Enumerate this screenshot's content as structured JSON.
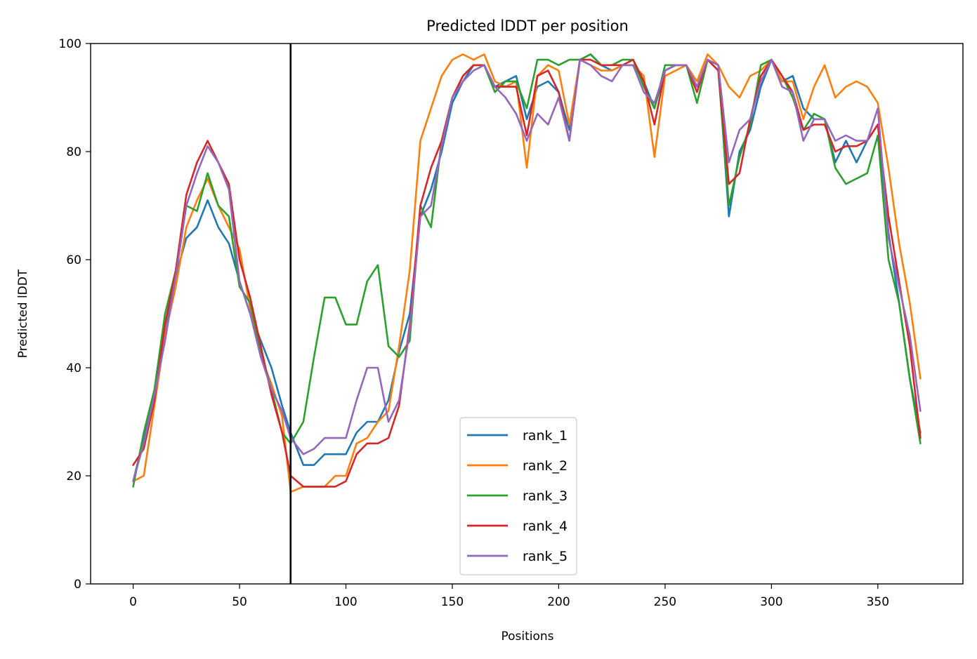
{
  "chart_data": {
    "type": "line",
    "title": "Predicted lDDT per position",
    "xlabel": "Positions",
    "ylabel": "Predicted lDDT",
    "xlim": [
      -20,
      390
    ],
    "ylim": [
      0,
      100
    ],
    "xticks": [
      0,
      50,
      100,
      150,
      200,
      250,
      300,
      350
    ],
    "yticks": [
      0,
      20,
      40,
      60,
      80,
      100
    ],
    "vline_x": 74,
    "legend_position": "lower center",
    "grid": false,
    "x": [
      0,
      5,
      10,
      15,
      20,
      25,
      30,
      35,
      40,
      45,
      50,
      55,
      60,
      65,
      70,
      74,
      80,
      85,
      90,
      95,
      100,
      105,
      110,
      115,
      120,
      125,
      130,
      135,
      140,
      145,
      150,
      155,
      160,
      165,
      170,
      175,
      180,
      185,
      190,
      195,
      200,
      205,
      210,
      215,
      220,
      225,
      230,
      235,
      240,
      245,
      250,
      255,
      260,
      265,
      270,
      275,
      280,
      285,
      290,
      295,
      300,
      305,
      310,
      315,
      320,
      325,
      330,
      335,
      340,
      345,
      350,
      355,
      360,
      365,
      370
    ],
    "series": [
      {
        "name": "rank_1",
        "color": "#1f77b4",
        "values": [
          19,
          27,
          35,
          46,
          57,
          64,
          66,
          71,
          66,
          63,
          56,
          50,
          45,
          40,
          33,
          28,
          22,
          22,
          24,
          24,
          24,
          28,
          30,
          30,
          34,
          43,
          50,
          68,
          73,
          80,
          89,
          93,
          96,
          96,
          92,
          93,
          94,
          86,
          92,
          93,
          91,
          84,
          97,
          98,
          96,
          95,
          96,
          96,
          93,
          88,
          95,
          96,
          96,
          92,
          97,
          96,
          68,
          80,
          84,
          92,
          97,
          93,
          94,
          88,
          86,
          86,
          78,
          82,
          78,
          82,
          85,
          65,
          52,
          38,
          28
        ]
      },
      {
        "name": "rank_2",
        "color": "#ff7f0e",
        "values": [
          19,
          20,
          33,
          46,
          55,
          66,
          71,
          75,
          70,
          66,
          62,
          51,
          42,
          37,
          31,
          17,
          18,
          18,
          18,
          20,
          20,
          26,
          27,
          30,
          32,
          44,
          58,
          82,
          88,
          94,
          97,
          98,
          97,
          98,
          93,
          92,
          93,
          77,
          94,
          96,
          95,
          85,
          97,
          96,
          95,
          95,
          96,
          96,
          94,
          79,
          94,
          95,
          96,
          93,
          98,
          96,
          92,
          90,
          94,
          95,
          97,
          93,
          93,
          86,
          92,
          96,
          90,
          92,
          93,
          92,
          89,
          77,
          63,
          52,
          38
        ]
      },
      {
        "name": "rank_3",
        "color": "#2ca02c",
        "values": [
          18,
          28,
          36,
          50,
          58,
          70,
          69,
          76,
          70,
          68,
          55,
          52,
          43,
          36,
          28,
          26,
          30,
          42,
          53,
          53,
          48,
          48,
          56,
          59,
          44,
          42,
          45,
          70,
          66,
          82,
          90,
          94,
          96,
          96,
          91,
          93,
          93,
          88,
          97,
          97,
          96,
          97,
          97,
          98,
          96,
          96,
          97,
          97,
          92,
          88,
          96,
          96,
          96,
          89,
          97,
          95,
          70,
          79,
          85,
          96,
          97,
          94,
          90,
          84,
          87,
          86,
          77,
          74,
          75,
          76,
          83,
          60,
          52,
          38,
          26
        ]
      },
      {
        "name": "rank_4",
        "color": "#d62728",
        "values": [
          22,
          25,
          34,
          48,
          58,
          72,
          78,
          82,
          78,
          74,
          60,
          53,
          44,
          35,
          28,
          20,
          18,
          18,
          18,
          18,
          19,
          24,
          26,
          26,
          27,
          33,
          48,
          70,
          77,
          82,
          90,
          94,
          96,
          96,
          92,
          92,
          92,
          83,
          94,
          95,
          91,
          82,
          97,
          97,
          96,
          96,
          96,
          97,
          93,
          85,
          95,
          96,
          96,
          91,
          97,
          95,
          74,
          76,
          86,
          94,
          97,
          94,
          91,
          84,
          85,
          85,
          80,
          81,
          81,
          82,
          85,
          68,
          56,
          44,
          27
        ]
      },
      {
        "name": "rank_5",
        "color": "#9467bd",
        "values": [
          19,
          26,
          35,
          45,
          57,
          70,
          76,
          81,
          78,
          73,
          56,
          50,
          42,
          36,
          32,
          27,
          24,
          25,
          27,
          27,
          27,
          34,
          40,
          40,
          30,
          34,
          47,
          68,
          70,
          81,
          90,
          93,
          95,
          96,
          92,
          90,
          87,
          82,
          87,
          85,
          90,
          82,
          97,
          96,
          94,
          93,
          96,
          96,
          91,
          89,
          95,
          96,
          96,
          92,
          97,
          96,
          78,
          84,
          86,
          93,
          97,
          92,
          91,
          82,
          86,
          86,
          82,
          83,
          82,
          82,
          88,
          64,
          55,
          46,
          32
        ]
      }
    ]
  }
}
